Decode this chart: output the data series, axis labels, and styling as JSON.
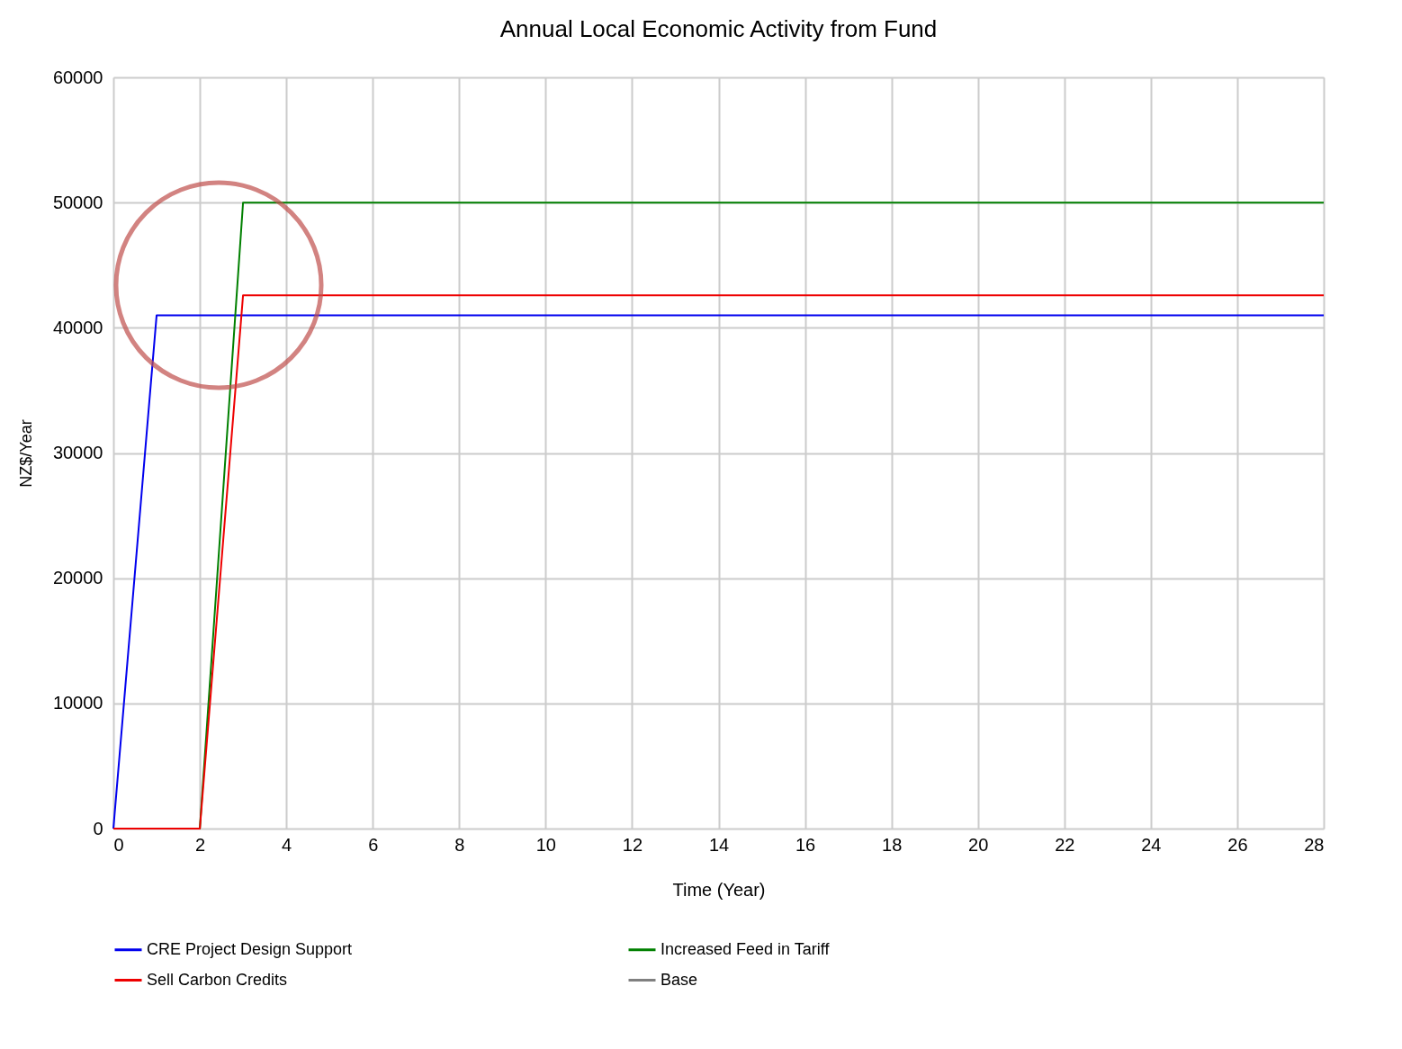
{
  "chart_data": {
    "type": "line",
    "title": "Annual Local Economic Activity from Fund",
    "xlabel": "Time (Year)",
    "ylabel": "NZ$/Year",
    "xlim": [
      0,
      28
    ],
    "xticks": [
      0,
      2,
      4,
      6,
      8,
      10,
      12,
      14,
      16,
      18,
      20,
      22,
      24,
      26,
      28
    ],
    "ylim": [
      0,
      60000
    ],
    "yticks": [
      0,
      10000,
      20000,
      30000,
      40000,
      50000,
      60000
    ],
    "grid": true,
    "legend": "bottom",
    "line_style": "solid",
    "marker": "none",
    "series": [
      {
        "name": "CRE Project Design Support",
        "color": "#0000ee",
        "x": [
          0,
          1,
          28
        ],
        "values": [
          0,
          41000,
          41000
        ]
      },
      {
        "name": "Increased Feed in Tariff",
        "color": "#008000",
        "x": [
          0,
          2,
          3,
          28
        ],
        "values": [
          0,
          0,
          50000,
          50000
        ]
      },
      {
        "name": "Sell Carbon Credits",
        "color": "#ee0000",
        "x": [
          0,
          2,
          3,
          28
        ],
        "values": [
          0,
          0,
          42600,
          42600
        ]
      },
      {
        "name": "Base",
        "color": "#808080"
      }
    ]
  }
}
